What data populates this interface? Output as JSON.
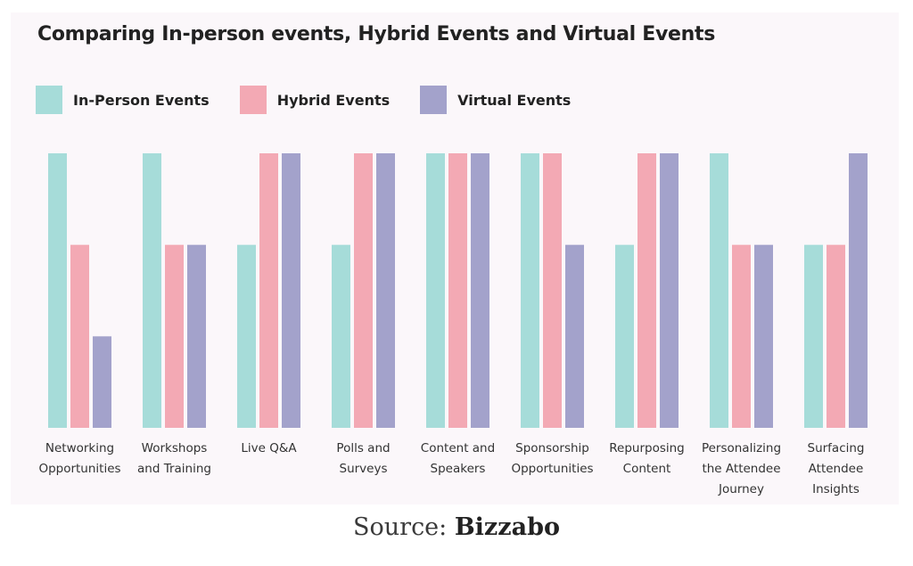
{
  "figure": {
    "source_prefix": "Source: ",
    "source_name": "Bizzabo"
  },
  "chart_data": {
    "type": "bar",
    "title": "Comparing In-person events, Hybrid Events and Virtual Events",
    "xlabel": "",
    "ylabel": "",
    "ylim": [
      0,
      3
    ],
    "grid": false,
    "legend_position": "top-left",
    "categories": [
      [
        "Networking",
        "Opportunities"
      ],
      [
        "Workshops",
        "and Training"
      ],
      [
        "Live Q&A"
      ],
      [
        "Polls and",
        "Surveys"
      ],
      [
        "Content and",
        "Speakers"
      ],
      [
        "Sponsorship",
        "Opportunities"
      ],
      [
        "Repurposing",
        "Content"
      ],
      [
        "Personalizing",
        "the Attendee",
        "Journey"
      ],
      [
        "Surfacing",
        "Attendee",
        "Insights"
      ]
    ],
    "series": [
      {
        "name": "In-Person Events",
        "color": "#a6dcd9",
        "values": [
          3,
          3,
          2,
          2,
          3,
          3,
          2,
          3,
          2
        ]
      },
      {
        "name": "Hybrid Events",
        "color": "#f3a9b4",
        "values": [
          2,
          2,
          3,
          3,
          3,
          3,
          3,
          2,
          2
        ]
      },
      {
        "name": "Virtual Events",
        "color": "#a3a2cb",
        "values": [
          1,
          2,
          3,
          3,
          3,
          2,
          3,
          2,
          3
        ]
      }
    ]
  }
}
